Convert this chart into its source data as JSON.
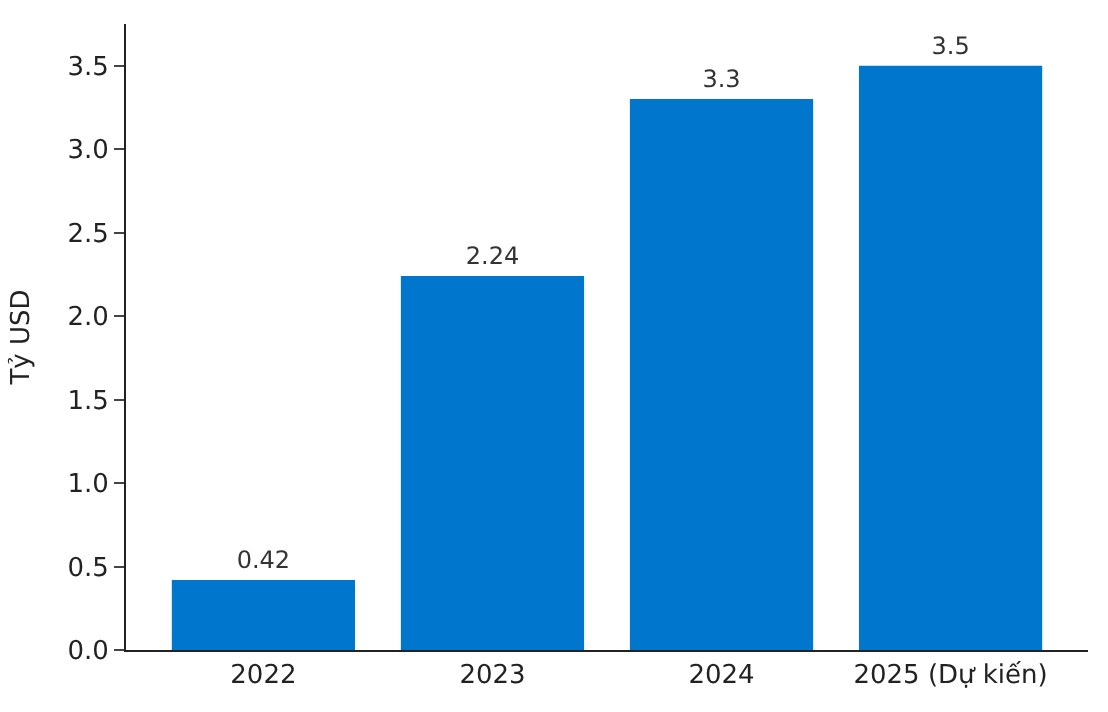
{
  "chart_data": {
    "type": "bar",
    "ylabel": "Tỷ USD",
    "categories": [
      "2022",
      "2023",
      "2024",
      "2025 (Dự kiến)"
    ],
    "values": [
      0.42,
      2.24,
      3.3,
      3.5
    ],
    "color": "#0077cc",
    "ylim": [
      0,
      3.75
    ],
    "yticks": [
      {
        "value": 0,
        "label": "0.0"
      },
      0.5,
      {
        "value": 1,
        "label": "1.0"
      },
      1.5,
      {
        "value": 2,
        "label": "2.0"
      },
      2.5,
      {
        "value": 3,
        "label": "3.0"
      },
      3.5
    ],
    "data_labels": true
  }
}
